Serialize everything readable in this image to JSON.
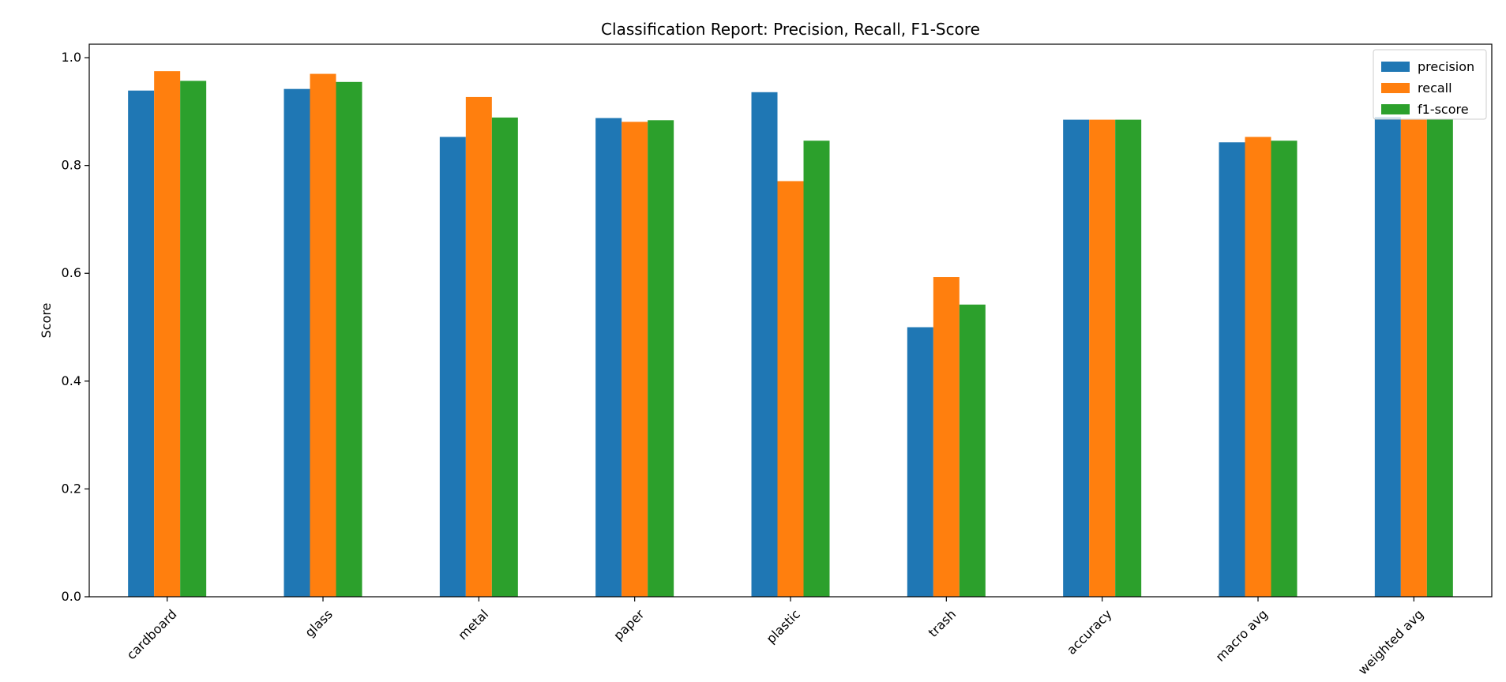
{
  "chart_data": {
    "type": "bar",
    "title": "Classification Report: Precision, Recall, F1-Score",
    "xlabel": "",
    "ylabel": "Score",
    "ylim": [
      0,
      1.025
    ],
    "yticks": [
      "0.0",
      "0.2",
      "0.4",
      "0.6",
      "0.8",
      "1.0"
    ],
    "grid": false,
    "legend_position": "top-right",
    "categories": [
      "cardboard",
      "glass",
      "metal",
      "paper",
      "plastic",
      "trash",
      "accuracy",
      "macro avg",
      "weighted avg"
    ],
    "series": [
      {
        "name": "precision",
        "color": "#1f77b4",
        "values": [
          0.939,
          0.942,
          0.853,
          0.888,
          0.936,
          0.5,
          0.885,
          0.843,
          0.89
        ]
      },
      {
        "name": "recall",
        "color": "#ff7f0e",
        "values": [
          0.975,
          0.97,
          0.927,
          0.881,
          0.771,
          0.593,
          0.885,
          0.853,
          0.885
        ]
      },
      {
        "name": "f1-score",
        "color": "#2ca02c",
        "values": [
          0.957,
          0.955,
          0.889,
          0.884,
          0.846,
          0.542,
          0.885,
          0.846,
          0.886
        ]
      }
    ]
  }
}
